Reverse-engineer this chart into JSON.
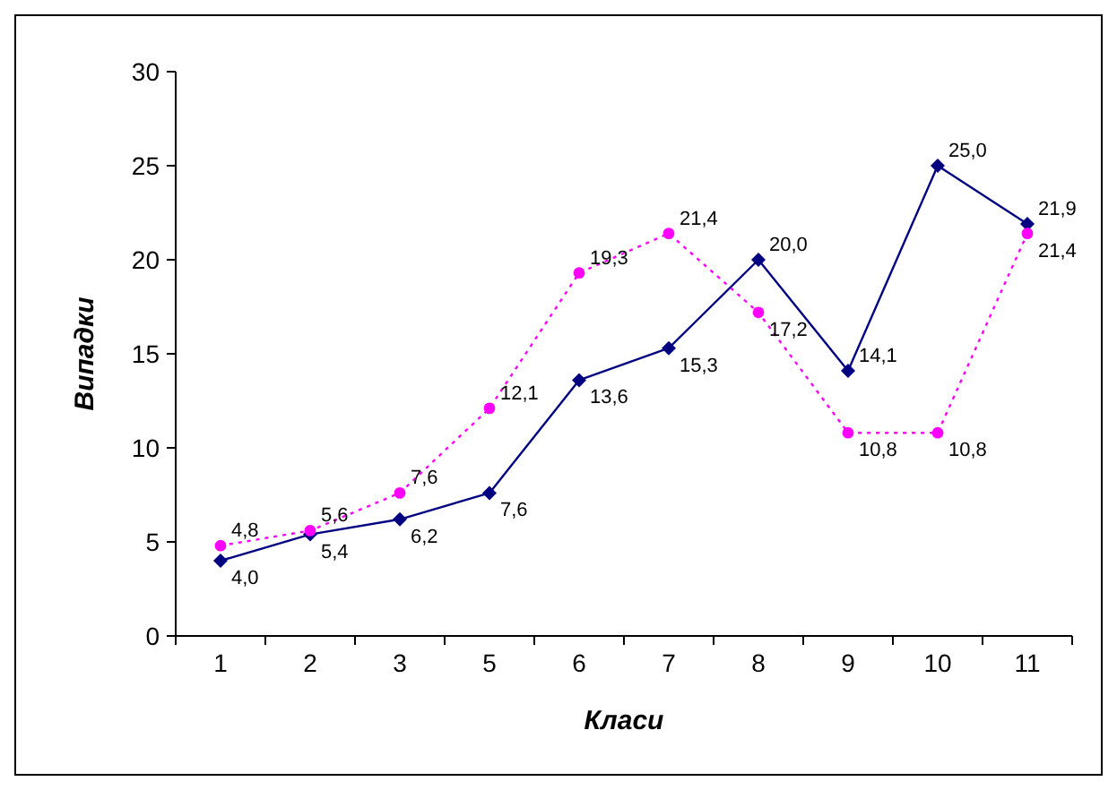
{
  "chart_data": {
    "type": "line",
    "xlabel": "Класи",
    "ylabel": "Випадки",
    "categories": [
      "1",
      "2",
      "3",
      "5",
      "6",
      "7",
      "8",
      "9",
      "10",
      "11"
    ],
    "ylim": [
      0,
      30
    ],
    "yticks": [
      0,
      5,
      10,
      15,
      20,
      25,
      30
    ],
    "grid": false,
    "series": [
      {
        "color": "#000080",
        "marker": "diamond",
        "line_style": "solid",
        "values": [
          4.0,
          5.4,
          6.2,
          7.6,
          13.6,
          15.3,
          20.0,
          14.1,
          25.0,
          21.9
        ],
        "value_labels": [
          "4,0",
          "5,4",
          "6,2",
          "7,6",
          "13,6",
          "15,3",
          "20,0",
          "14,1",
          "25,0",
          "21,9"
        ]
      },
      {
        "color": "#ff00ff",
        "marker": "circle",
        "line_style": "dotted",
        "values": [
          4.8,
          5.6,
          7.6,
          12.1,
          19.3,
          21.4,
          17.2,
          10.8,
          10.8,
          21.4
        ],
        "value_labels": [
          "4,8",
          "5,6",
          "7,6",
          "12,1",
          "19,3",
          "21,4",
          "17,2",
          "10,8",
          "10,8",
          "21,4"
        ]
      }
    ]
  }
}
